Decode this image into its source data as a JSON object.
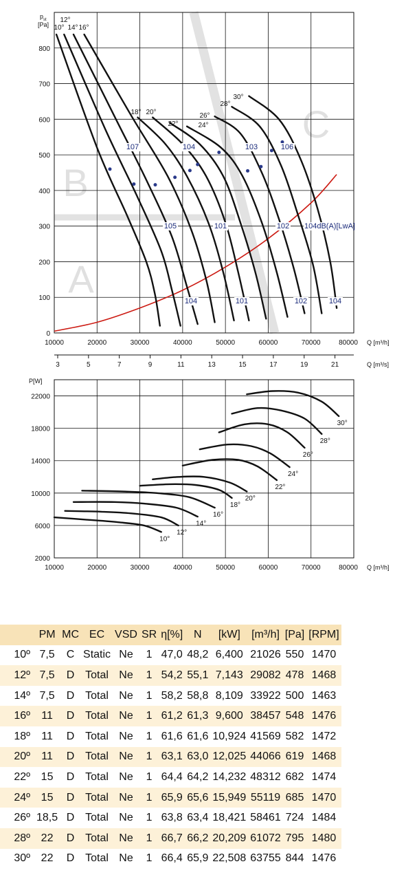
{
  "chart_data": [
    {
      "type": "line",
      "title": "",
      "ylabel": "pst [Pa]",
      "ylabel_main": "p",
      "ylabel_sub": "st",
      "ylabel_unit": "[Pa]",
      "xlabel": "Q [m³/h]",
      "xlabel2": "Q [m³/s]",
      "xlim": [
        10000,
        80000
      ],
      "ylim": [
        0,
        900
      ],
      "x_ticks": [
        10000,
        20000,
        30000,
        40000,
        50000,
        60000,
        70000,
        80000
      ],
      "y_ticks": [
        0,
        100,
        200,
        300,
        400,
        500,
        600,
        700,
        800
      ],
      "x2_ticks": [
        3,
        5,
        7,
        9,
        11,
        13,
        15,
        17,
        19,
        21
      ],
      "regions": [
        "A",
        "B",
        "C"
      ],
      "series": [
        {
          "name": "10°",
          "x": [
            10500,
            20000,
            27000,
            31500,
            33500,
            34700
          ],
          "y": [
            838,
            520,
            330,
            200,
            110,
            20
          ]
        },
        {
          "name": "12°",
          "x": [
            12300,
            22000,
            29500,
            35000,
            37500,
            39500
          ],
          "y": [
            838,
            570,
            380,
            230,
            120,
            20
          ]
        },
        {
          "name": "14°",
          "x": [
            14500,
            24000,
            31500,
            37500,
            41000,
            43500
          ],
          "y": [
            838,
            610,
            430,
            270,
            130,
            25
          ]
        },
        {
          "name": "16°",
          "x": [
            17000,
            28000,
            36500,
            42000,
            45500,
            47500
          ],
          "y": [
            838,
            610,
            440,
            290,
            150,
            30
          ]
        },
        {
          "name": "18°",
          "x": [
            29500,
            36000,
            41000,
            46000,
            49500,
            52000
          ],
          "y": [
            605,
            530,
            440,
            310,
            170,
            35
          ]
        },
        {
          "name": "20°",
          "x": [
            33000,
            40000,
            45500,
            50000,
            53000,
            55500
          ],
          "y": [
            605,
            530,
            440,
            310,
            170,
            35
          ]
        },
        {
          "name": "22°",
          "x": [
            37000,
            44000,
            49500,
            53500,
            57000,
            59500
          ],
          "y": [
            590,
            530,
            440,
            310,
            170,
            40
          ]
        },
        {
          "name": "24°",
          "x": [
            41000,
            49000,
            54000,
            58500,
            62000,
            64500
          ],
          "y": [
            580,
            520,
            440,
            310,
            170,
            45
          ]
        },
        {
          "name": "26°",
          "x": [
            47500,
            53500,
            58500,
            62500,
            66000,
            68500
          ],
          "y": [
            608,
            560,
            450,
            320,
            180,
            55
          ]
        },
        {
          "name": "28°",
          "x": [
            51500,
            58000,
            63000,
            67000,
            70500,
            72500
          ],
          "y": [
            635,
            580,
            470,
            330,
            190,
            55
          ]
        },
        {
          "name": "30°",
          "x": [
            55500,
            62500,
            67500,
            71500,
            74500,
            76000
          ],
          "y": [
            665,
            600,
            490,
            350,
            200,
            70
          ]
        }
      ],
      "system_curve": {
        "color": "#cc1a12",
        "x": [
          10000,
          20000,
          30000,
          40000,
          50000,
          60000,
          70000,
          76000
        ],
        "y": [
          5,
          30,
          70,
          120,
          185,
          265,
          365,
          445
        ]
      },
      "angle_labels": [
        "10°",
        "12°",
        "14°",
        "16°",
        "18°",
        "20°",
        "22°",
        "24°",
        "26°",
        "28°",
        "30°"
      ],
      "sound_labels": {
        "upper": [
          "107",
          "104",
          "103",
          "106"
        ],
        "middle": [
          "105",
          "101",
          "102",
          "104dB(A)[LwA]"
        ],
        "lower": [
          "104",
          "101",
          "102",
          "104"
        ]
      },
      "iso_points": [
        [
          23000,
          460
        ],
        [
          28600,
          418
        ],
        [
          33600,
          416
        ],
        [
          38200,
          437
        ],
        [
          41700,
          456
        ],
        [
          43500,
          473
        ],
        [
          48500,
          507
        ],
        [
          55200,
          455
        ],
        [
          58300,
          467
        ],
        [
          60800,
          512
        ],
        [
          63300,
          536
        ]
      ]
    },
    {
      "type": "line",
      "title": "",
      "ylabel": "P[W]",
      "xlabel": "Q [m³/h]",
      "xlim": [
        10000,
        80000
      ],
      "ylim": [
        2000,
        24000
      ],
      "x_ticks": [
        10000,
        20000,
        30000,
        40000,
        50000,
        60000,
        70000,
        80000
      ],
      "y_ticks": [
        2000,
        6000,
        10000,
        14000,
        18000,
        22000
      ],
      "series": [
        {
          "name": "10°",
          "x": [
            10000,
            18000,
            25000,
            31000,
            35000
          ],
          "y": [
            7000,
            6700,
            6400,
            6000,
            5200
          ]
        },
        {
          "name": "12°",
          "x": [
            12500,
            21000,
            28000,
            35000,
            39000
          ],
          "y": [
            7800,
            7700,
            7500,
            7000,
            6000
          ]
        },
        {
          "name": "14°",
          "x": [
            14500,
            24000,
            31000,
            38500,
            43500
          ],
          "y": [
            8900,
            8900,
            8700,
            8200,
            7100
          ]
        },
        {
          "name": "16°",
          "x": [
            16500,
            26000,
            34000,
            41500,
            47500
          ],
          "y": [
            10300,
            10200,
            10000,
            9500,
            8200
          ]
        },
        {
          "name": "18°",
          "x": [
            30000,
            37000,
            43000,
            48500,
            51500
          ],
          "y": [
            10900,
            11100,
            11000,
            10400,
            9400
          ]
        },
        {
          "name": "20°",
          "x": [
            33000,
            39000,
            45000,
            51000,
            55000
          ],
          "y": [
            11700,
            12000,
            12000,
            11300,
            10200
          ]
        },
        {
          "name": "22°",
          "x": [
            40000,
            47000,
            53000,
            57500,
            62000
          ],
          "y": [
            13400,
            14100,
            14100,
            13300,
            11600
          ]
        },
        {
          "name": "24°",
          "x": [
            44000,
            50500,
            56000,
            60500,
            65000
          ],
          "y": [
            15400,
            16000,
            15800,
            14900,
            13200
          ]
        },
        {
          "name": "26°",
          "x": [
            48500,
            54500,
            60000,
            64500,
            68500
          ],
          "y": [
            17500,
            18500,
            18500,
            17500,
            15600
          ]
        },
        {
          "name": "28°",
          "x": [
            51500,
            57500,
            63000,
            68500,
            72500
          ],
          "y": [
            19800,
            20500,
            20200,
            19200,
            17300
          ]
        },
        {
          "name": "30°",
          "x": [
            55000,
            61000,
            67000,
            72500,
            76500
          ],
          "y": [
            22200,
            22600,
            22400,
            21300,
            19500
          ]
        }
      ]
    }
  ],
  "table": {
    "headers": [
      "",
      "PM",
      "MC",
      "EC",
      "VSD",
      "SR",
      "η[%]",
      "N",
      "[kW]",
      "[m³/h]",
      "[Pa]",
      "[RPM]"
    ],
    "rows": [
      [
        "10º",
        "7,5",
        "C",
        "Static",
        "Ne",
        "1",
        "47,0",
        "48,2",
        "6,400",
        "21026",
        "550",
        "1470"
      ],
      [
        "12º",
        "7,5",
        "D",
        "Total",
        "Ne",
        "1",
        "54,2",
        "55,1",
        "7,143",
        "29082",
        "478",
        "1468"
      ],
      [
        "14º",
        "7,5",
        "D",
        "Total",
        "Ne",
        "1",
        "58,2",
        "58,8",
        "8,109",
        "33922",
        "500",
        "1463"
      ],
      [
        "16º",
        "11",
        "D",
        "Total",
        "Ne",
        "1",
        "61,2",
        "61,3",
        "9,600",
        "38457",
        "548",
        "1476"
      ],
      [
        "18º",
        "11",
        "D",
        "Total",
        "Ne",
        "1",
        "61,6",
        "61,6",
        "10,924",
        "41569",
        "582",
        "1472"
      ],
      [
        "20º",
        "11",
        "D",
        "Total",
        "Ne",
        "1",
        "63,1",
        "63,0",
        "12,025",
        "44066",
        "619",
        "1468"
      ],
      [
        "22º",
        "15",
        "D",
        "Total",
        "Ne",
        "1",
        "64,4",
        "64,2",
        "14,232",
        "48312",
        "682",
        "1474"
      ],
      [
        "24º",
        "15",
        "D",
        "Total",
        "Ne",
        "1",
        "65,9",
        "65,6",
        "15,949",
        "55119",
        "685",
        "1470"
      ],
      [
        "26º",
        "18,5",
        "D",
        "Total",
        "Ne",
        "1",
        "63,8",
        "63,4",
        "18,421",
        "58461",
        "724",
        "1484"
      ],
      [
        "28º",
        "22",
        "D",
        "Total",
        "Ne",
        "1",
        "66,7",
        "66,2",
        "20,209",
        "61072",
        "795",
        "1480"
      ],
      [
        "30º",
        "22",
        "D",
        "Total",
        "Ne",
        "1",
        "66,4",
        "65,9",
        "22,508",
        "63755",
        "844",
        "1476"
      ]
    ]
  }
}
